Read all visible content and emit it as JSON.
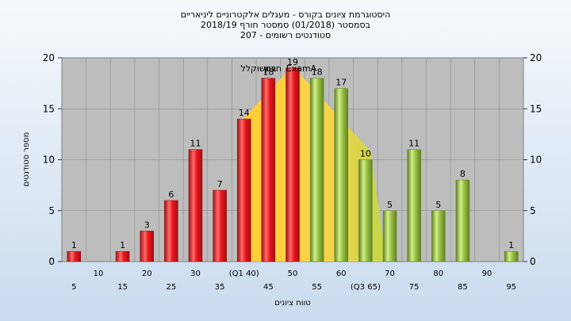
{
  "chart_data": {
    "type": "bar",
    "title_lines": [
      "היסטוגרמת ציונים בקורס - מעגלים אלקטרוניים ליניאריים",
      "בסמסטר  (01/2018)  סמסטר חורף 2018/19",
      "סטודנטים רשומים - 207"
    ],
    "xlabel": "טווח ציונים",
    "ylabel": "מספר סטודנטים",
    "ylim": [
      0,
      20
    ],
    "yticks": [
      0,
      5,
      10,
      15,
      20
    ],
    "grid": true,
    "categories": [
      "5",
      "10",
      "15",
      "20",
      "25",
      "30",
      "35",
      "40",
      "45",
      "50",
      "55",
      "60",
      "65",
      "70",
      "75",
      "80",
      "85",
      "90",
      "95"
    ],
    "x_tick_labels": [
      "5",
      "10",
      "15",
      "20",
      "25",
      "30",
      "35",
      "(Q1 40)",
      "45",
      "50",
      "55",
      "60",
      "(Q3 65)",
      "70",
      "75",
      "80",
      "85",
      "90",
      "95"
    ],
    "values": [
      1,
      0,
      1,
      3,
      6,
      11,
      7,
      14,
      18,
      19,
      18,
      17,
      10,
      5,
      11,
      5,
      8,
      0,
      1
    ],
    "data_labels": [
      "1",
      "",
      "1",
      "3",
      "6",
      "11",
      "7",
      "14",
      "18",
      "19",
      "18",
      "17",
      "10",
      "5",
      "11",
      "5",
      "8",
      "",
      "1"
    ],
    "bar_colors": [
      "red",
      "",
      "red",
      "red",
      "red",
      "red",
      "red",
      "red",
      "red",
      "red",
      "green",
      "green",
      "green",
      "green",
      "green",
      "green",
      "green",
      "",
      "green"
    ],
    "annotations": [
      "חציון",
      "ExamA",
      "במשוקלל"
    ],
    "iqr_band": {
      "from": "40",
      "to": "65",
      "peak": 19
    }
  },
  "colors": {
    "plot_bg": "#bdbdbd",
    "page_bg": "#dde8f3",
    "band_yellow": "#ffcc33",
    "bar_red": "#e8171c",
    "bar_red_light": "#ff6b6b",
    "bar_red_dark": "#a30e12",
    "bar_green": "#9ac145",
    "bar_green_light": "#d2ee88",
    "bar_green_dark": "#5f8223"
  }
}
